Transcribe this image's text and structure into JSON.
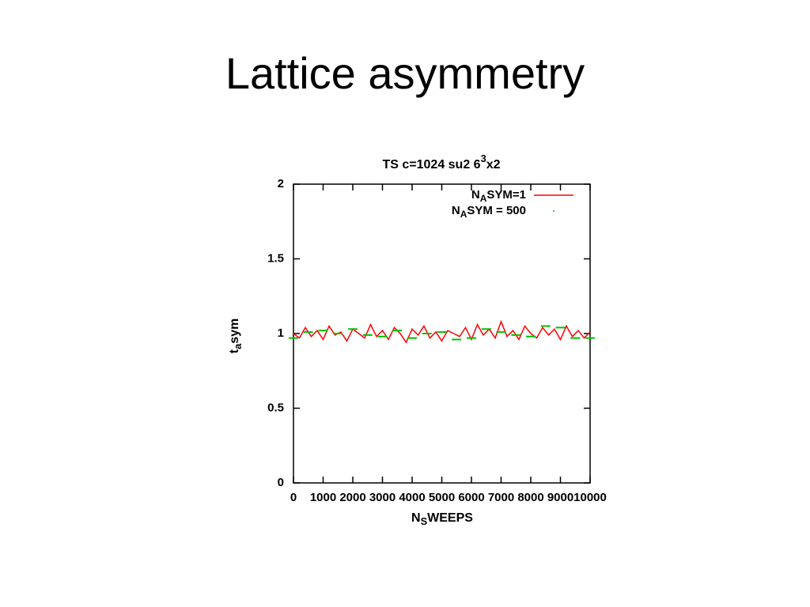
{
  "slide_title": "Lattice asymmetry",
  "chart_data": {
    "type": "line",
    "title": [
      "TS c=1024 su2 6",
      "3",
      "x2"
    ],
    "x_label": [
      "N",
      "S",
      "WEEPS"
    ],
    "y_label": [
      "t",
      "a",
      "sym"
    ],
    "xlim": [
      0,
      10000
    ],
    "xticks": [
      0,
      1000,
      2000,
      3000,
      4000,
      5000,
      6000,
      7000,
      8000,
      9000,
      10000
    ],
    "ylim": [
      0,
      2
    ],
    "yticks": [
      0,
      0.5,
      1,
      1.5,
      2
    ],
    "legend": "top-right",
    "series": [
      {
        "name": [
          "N",
          "A",
          "SYM=1"
        ],
        "color": "#ff0000",
        "style": "line",
        "x": [
          0,
          200,
          400,
          600,
          800,
          1000,
          1200,
          1400,
          1600,
          1800,
          2000,
          2200,
          2400,
          2600,
          2800,
          3000,
          3200,
          3400,
          3600,
          3800,
          4000,
          4200,
          4400,
          4600,
          4800,
          5000,
          5200,
          5400,
          5600,
          5800,
          6000,
          6200,
          6400,
          6600,
          6800,
          7000,
          7200,
          7400,
          7600,
          7800,
          8000,
          8200,
          8400,
          8600,
          8800,
          9000,
          9200,
          9400,
          9600,
          9800,
          10000
        ],
        "values": [
          1.0,
          0.97,
          1.04,
          0.98,
          1.02,
          0.96,
          1.05,
          0.99,
          1.01,
          0.95,
          1.03,
          1.0,
          0.97,
          1.06,
          0.98,
          1.02,
          0.96,
          1.04,
          1.0,
          0.94,
          1.03,
          0.99,
          1.05,
          0.97,
          1.01,
          0.95,
          1.02,
          1.0,
          0.98,
          1.04,
          0.96,
          1.06,
          0.99,
          1.03,
          0.97,
          1.08,
          0.98,
          1.02,
          0.96,
          1.05,
          1.0,
          0.97,
          1.04,
          0.99,
          1.03,
          0.96,
          1.05,
          0.98,
          1.02,
          0.97,
          1.01
        ]
      },
      {
        "name": [
          "N",
          "A",
          "SYM = 500"
        ],
        "color": "#00c000",
        "style": "points",
        "x": [
          0,
          500,
          1000,
          1500,
          2000,
          2500,
          3000,
          3500,
          4000,
          4500,
          5000,
          5500,
          6000,
          6500,
          7000,
          7500,
          8000,
          8500,
          9000,
          9500,
          10000
        ],
        "values": [
          0.97,
          1.01,
          1.02,
          1.0,
          1.03,
          0.99,
          0.98,
          1.02,
          0.97,
          1.0,
          1.01,
          0.96,
          0.97,
          1.03,
          1.01,
          0.99,
          0.98,
          1.05,
          1.04,
          0.97,
          0.97
        ]
      }
    ]
  }
}
